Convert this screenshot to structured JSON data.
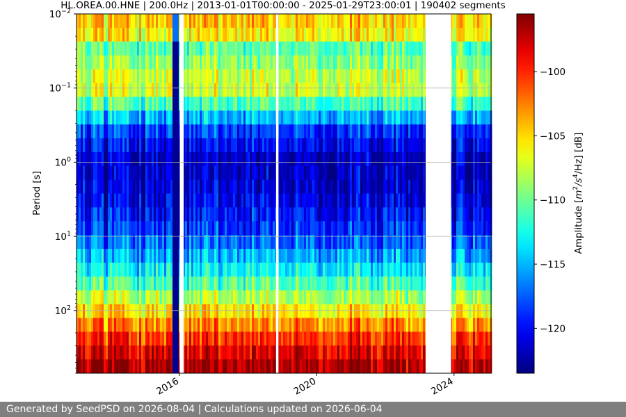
{
  "chart_data": {
    "type": "heatmap",
    "title": "HL.OREA.00.HNE | 200.0Hz | 2013-01-01T00:00:00 - 2025-01-29T23:00:01 | 190402 segments",
    "xlabel": "",
    "ylabel": "Period [s]",
    "x_scale": "time",
    "xlim": [
      "2013-01-01",
      "2025-01-29"
    ],
    "x_ticks": [
      {
        "value": "2016-01-01",
        "label": "2016"
      },
      {
        "value": "2020-01-01",
        "label": "2020"
      },
      {
        "value": "2024-01-01",
        "label": "2024"
      }
    ],
    "y_scale": "log",
    "y_inverted": true,
    "ylim": [
      0.01,
      700
    ],
    "y_ticks": [
      {
        "value": 0.01,
        "base": "10",
        "exp": "−2"
      },
      {
        "value": 0.1,
        "base": "10",
        "exp": "−1"
      },
      {
        "value": 1,
        "base": "10",
        "exp": "0"
      },
      {
        "value": 10,
        "base": "10",
        "exp": "1"
      },
      {
        "value": 100,
        "base": "10",
        "exp": "2"
      }
    ],
    "grid": true,
    "colormap": "jet",
    "colorbar": {
      "label_prefix": "Amplitude [",
      "label_unit": "m",
      "label_exp1": "2",
      "label_mid": "/s",
      "label_exp2": "4",
      "label_suffix": "/Hz] [dB]",
      "range": [
        -123.5,
        -95.5
      ],
      "ticks": [
        {
          "value": -100,
          "label": "−100"
        },
        {
          "value": -105,
          "label": "−105"
        },
        {
          "value": -110,
          "label": "−110"
        },
        {
          "value": -115,
          "label": "−115"
        },
        {
          "value": -120,
          "label": "−120"
        }
      ]
    },
    "data_gaps": [
      {
        "start": "2015-10-10",
        "end": "2015-12-20",
        "note": "low uniform level"
      },
      {
        "start": "2016-01-05",
        "end": "2016-02-15"
      },
      {
        "start": "2018-10-25",
        "end": "2018-11-20"
      },
      {
        "start": "2023-03-05",
        "end": "2023-12-01"
      }
    ],
    "median_amplitude_profile_db": [
      {
        "period": 0.01,
        "value": -104
      },
      {
        "period": 0.02,
        "value": -106
      },
      {
        "period": 0.03,
        "value": -111
      },
      {
        "period": 0.06,
        "value": -108
      },
      {
        "period": 0.1,
        "value": -107
      },
      {
        "period": 0.2,
        "value": -113
      },
      {
        "period": 0.4,
        "value": -119
      },
      {
        "period": 1,
        "value": -122
      },
      {
        "period": 3,
        "value": -121
      },
      {
        "period": 10,
        "value": -118
      },
      {
        "period": 30,
        "value": -113
      },
      {
        "period": 70,
        "value": -108
      },
      {
        "period": 150,
        "value": -103
      },
      {
        "period": 300,
        "value": -99
      },
      {
        "period": 700,
        "value": -96
      }
    ]
  },
  "footer": {
    "text": "Generated by SeedPSD on 2026-08-04 | Calculations updated on 2026-06-04"
  }
}
